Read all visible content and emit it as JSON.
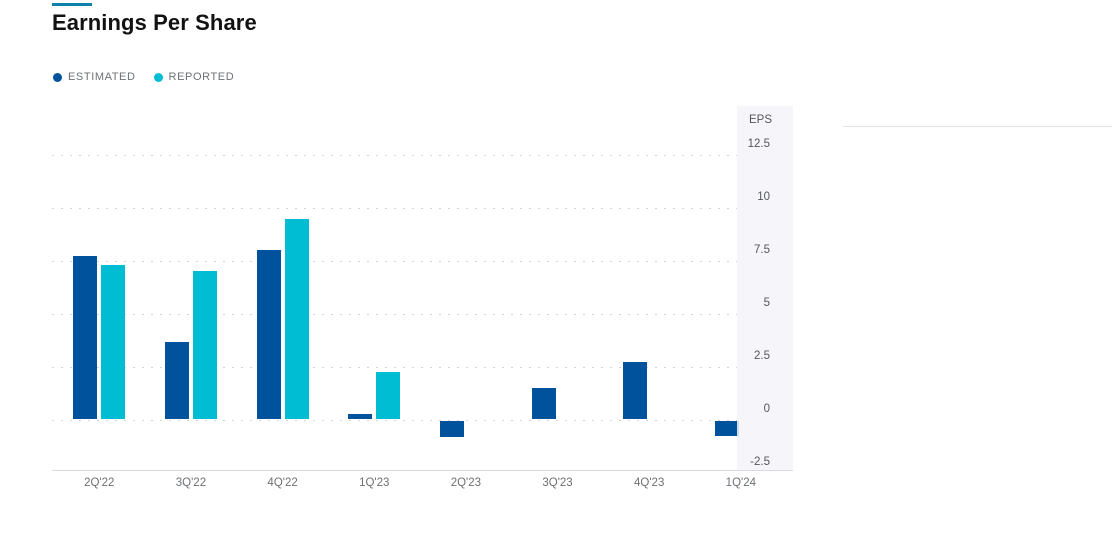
{
  "page": {
    "title": "Earnings Per Share",
    "accent_color": "#0c81a9"
  },
  "legend": {
    "items": [
      {
        "label": "ESTIMATED",
        "color": "#00529c"
      },
      {
        "label": "REPORTED",
        "color": "#00bdd4"
      }
    ]
  },
  "chart_data": {
    "type": "bar",
    "title": "Earnings Per Share",
    "categories": [
      "2Q'22",
      "3Q'22",
      "4Q'22",
      "1Q'23",
      "2Q'23",
      "3Q'23",
      "4Q'23",
      "1Q'24"
    ],
    "series": [
      {
        "name": "ESTIMATED",
        "color": "#00529c",
        "values": [
          7.7,
          3.65,
          8.0,
          0.27,
          -0.78,
          1.5,
          2.7,
          -0.75
        ]
      },
      {
        "name": "REPORTED",
        "color": "#00bdd4",
        "values": [
          7.3,
          7.0,
          9.45,
          2.25,
          null,
          null,
          null,
          null
        ]
      }
    ],
    "ylabel": "EPS",
    "yticks": [
      12.5,
      10,
      7.5,
      5,
      2.5,
      0,
      -2.5
    ],
    "ylim": [
      -2.5,
      14.75
    ],
    "grid": "horizontal-dotted",
    "legend_position": "top-left",
    "y_axis_position": "right-overlay"
  }
}
